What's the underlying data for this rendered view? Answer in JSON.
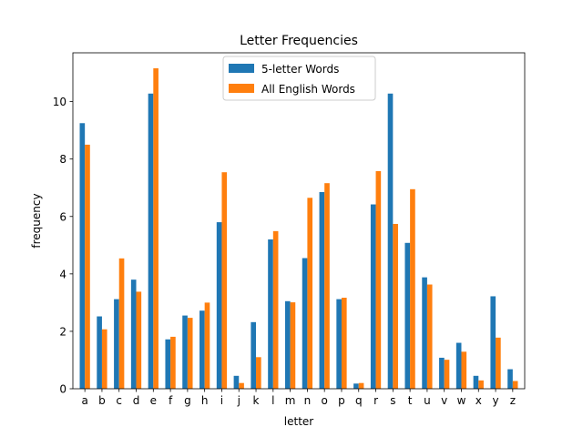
{
  "chart_data": {
    "type": "bar",
    "title": "Letter Frequencies",
    "xlabel": "letter",
    "ylabel": "frequency",
    "ylim": [
      0,
      11.7
    ],
    "yticks": [
      0,
      2,
      4,
      6,
      8,
      10
    ],
    "grid": false,
    "legend_position": "top-center",
    "categories": [
      "a",
      "b",
      "c",
      "d",
      "e",
      "f",
      "g",
      "h",
      "i",
      "j",
      "k",
      "l",
      "m",
      "n",
      "o",
      "p",
      "q",
      "r",
      "s",
      "t",
      "u",
      "v",
      "w",
      "x",
      "y",
      "z"
    ],
    "series": [
      {
        "name": "5-letter Words",
        "color": "#1f77b4",
        "values": [
          9.25,
          2.52,
          3.12,
          3.8,
          10.28,
          1.72,
          2.55,
          2.72,
          5.8,
          0.45,
          2.32,
          5.2,
          3.05,
          4.55,
          6.85,
          3.12,
          0.18,
          6.42,
          10.28,
          5.08,
          3.88,
          1.08,
          1.6,
          0.45,
          3.22,
          0.68
        ]
      },
      {
        "name": "All English Words",
        "color": "#ff7f0e",
        "values": [
          8.5,
          2.07,
          4.54,
          3.38,
          11.16,
          1.81,
          2.47,
          3.0,
          7.54,
          0.2,
          1.1,
          5.49,
          3.01,
          6.65,
          7.16,
          3.17,
          0.2,
          7.58,
          5.74,
          6.95,
          3.63,
          1.01,
          1.29,
          0.29,
          1.78,
          0.27
        ]
      }
    ]
  }
}
